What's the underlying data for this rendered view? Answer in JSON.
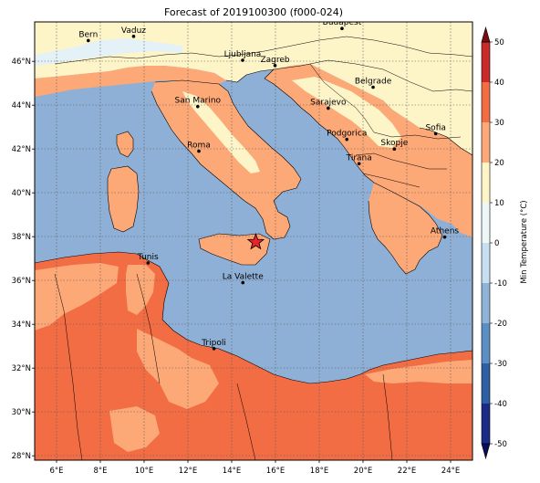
{
  "title": "Forecast of 2019100300 (f000-024)",
  "map": {
    "lon_range": [
      5,
      25
    ],
    "lat_range": [
      27.8,
      47.8
    ],
    "lon_ticks": [
      "6°E",
      "8°E",
      "10°E",
      "12°E",
      "14°E",
      "16°E",
      "18°E",
      "20°E",
      "22°E",
      "24°E"
    ],
    "lat_ticks": [
      "28°N",
      "30°N",
      "32°N",
      "34°N",
      "36°N",
      "38°N",
      "40°N",
      "42°N",
      "44°N",
      "46°N"
    ],
    "grid": true,
    "colors": {
      "sea": "#8fb0d6",
      "band_0_10": "#fdf4c8",
      "band_10_20": "#fca877",
      "band_20_30": "#f26c44",
      "cold": "#e4f1f7",
      "marker": "#e8232a"
    },
    "cities": [
      {
        "name": "Bern",
        "lon": 7.45,
        "lat": 46.95
      },
      {
        "name": "Vaduz",
        "lon": 9.52,
        "lat": 47.14
      },
      {
        "name": "Budapest",
        "lon": 19.04,
        "lat": 47.5
      },
      {
        "name": "Ljubljana",
        "lon": 14.5,
        "lat": 46.05
      },
      {
        "name": "Zagreb",
        "lon": 15.98,
        "lat": 45.81
      },
      {
        "name": "Belgrade",
        "lon": 20.46,
        "lat": 44.82
      },
      {
        "name": "San Marino",
        "lon": 12.45,
        "lat": 43.94
      },
      {
        "name": "Sarajevo",
        "lon": 18.41,
        "lat": 43.86
      },
      {
        "name": "Sofia",
        "lon": 23.32,
        "lat": 42.7
      },
      {
        "name": "Podgorica",
        "lon": 19.26,
        "lat": 42.44
      },
      {
        "name": "Skopje",
        "lon": 21.43,
        "lat": 42.0
      },
      {
        "name": "Roma",
        "lon": 12.5,
        "lat": 41.9
      },
      {
        "name": "Tirana",
        "lon": 19.82,
        "lat": 41.33
      },
      {
        "name": "Athens",
        "lon": 23.73,
        "lat": 37.98
      },
      {
        "name": "Tunis",
        "lon": 10.18,
        "lat": 36.8
      },
      {
        "name": "La Valette",
        "lon": 14.51,
        "lat": 35.9
      },
      {
        "name": "Tripoli",
        "lon": 13.19,
        "lat": 32.89
      }
    ],
    "star": {
      "lon": 15.1,
      "lat": 37.75
    }
  },
  "colorbar": {
    "label": "Min Temperature (°C)",
    "ticks": [
      "-50",
      "-40",
      "-30",
      "-20",
      "-10",
      "0",
      "10",
      "20",
      "30",
      "40",
      "50"
    ],
    "colors": [
      "#1a2a86",
      "#2e5fa3",
      "#5b8fc4",
      "#8fb4d8",
      "#c7dff0",
      "#eef6f6",
      "#fdf4c8",
      "#fca877",
      "#f26c44",
      "#c92a2a",
      "#7a0d0d"
    ]
  }
}
